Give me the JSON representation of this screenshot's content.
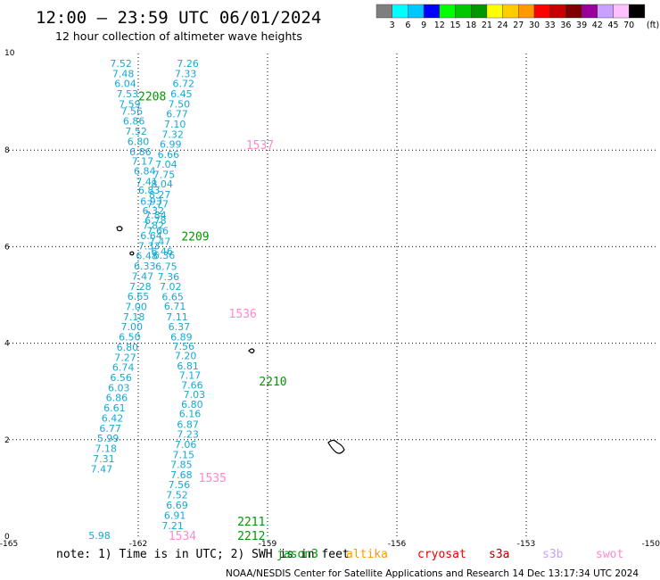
{
  "chart_data": {
    "type": "scatter",
    "title": "12:00 — 23:59 UTC 06/01/2024",
    "subtitle": "12 hour collection of altimeter wave heights",
    "xlim": [
      -165,
      -150
    ],
    "ylim": [
      0,
      10
    ],
    "x_ticks": [
      "-165",
      "-162",
      "-159",
      "-156",
      "-153",
      "-150"
    ],
    "y_ticks": [
      "0",
      "2",
      "4",
      "6",
      "8",
      "10"
    ],
    "grid": "dotted",
    "colorbar": {
      "unit": "(ft)",
      "labels": [
        "3",
        "6",
        "9",
        "12",
        "15",
        "18",
        "21",
        "24",
        "27",
        "30",
        "33",
        "36",
        "39",
        "42",
        "45",
        "70"
      ],
      "colors": [
        "#7f7f7f",
        "#00ffff",
        "#00c8ff",
        "#0000ff",
        "#00ff00",
        "#00c800",
        "#009600",
        "#ffff00",
        "#ffcc00",
        "#ff9900",
        "#ff0000",
        "#c80000",
        "#800000",
        "#9b009b",
        "#c9a0ff",
        "#ffc0ff",
        "#000000"
      ]
    },
    "passes": [
      {
        "label": "2208",
        "satellite": "jason3",
        "color": "#009900",
        "x": -162.0,
        "y": 9.1
      },
      {
        "label": "2209",
        "satellite": "jason3",
        "color": "#009900",
        "x": -161.0,
        "y": 6.2
      },
      {
        "label": "2210",
        "satellite": "jason3",
        "color": "#009900",
        "x": -159.2,
        "y": 3.2
      },
      {
        "label": "2211",
        "satellite": "jason3",
        "color": "#009900",
        "x": -159.7,
        "y": 0.3
      },
      {
        "label": "2212",
        "satellite": "jason3",
        "color": "#009900",
        "x": -159.7,
        "y": 0.0
      },
      {
        "label": "1537",
        "satellite": "swot",
        "color": "#ff88cc",
        "x": -159.5,
        "y": 8.1
      },
      {
        "label": "1536",
        "satellite": "swot",
        "color": "#ff88cc",
        "x": -159.9,
        "y": 4.6
      },
      {
        "label": "1535",
        "satellite": "swot",
        "color": "#ff88cc",
        "x": -160.6,
        "y": 1.2
      },
      {
        "label": "1534",
        "satellite": "swot",
        "color": "#ff88cc",
        "x": -161.3,
        "y": 0.0
      }
    ],
    "series": [
      {
        "name": "2208",
        "points": [
          {
            "x": -162.4,
            "y": 9.8,
            "v": "7.52"
          },
          {
            "x": -162.35,
            "y": 9.58,
            "v": "7.48"
          },
          {
            "x": -162.3,
            "y": 9.38,
            "v": "6.04"
          },
          {
            "x": -162.25,
            "y": 9.17,
            "v": "7.53"
          },
          {
            "x": -162.2,
            "y": 8.96,
            "v": "7.59"
          },
          {
            "x": -162.15,
            "y": 8.81,
            "v": "7.56"
          },
          {
            "x": -162.1,
            "y": 8.6,
            "v": "6.86"
          },
          {
            "x": -162.05,
            "y": 8.39,
            "v": "7.52"
          },
          {
            "x": -162.0,
            "y": 8.18,
            "v": "6.80"
          },
          {
            "x": -161.95,
            "y": 7.97,
            "v": "6.86"
          },
          {
            "x": -161.9,
            "y": 7.77,
            "v": "7.17"
          },
          {
            "x": -161.85,
            "y": 7.57,
            "v": "6.84"
          },
          {
            "x": -161.8,
            "y": 7.35,
            "v": "7.41"
          },
          {
            "x": -161.75,
            "y": 7.17,
            "v": "6.83"
          },
          {
            "x": -161.7,
            "y": 6.94,
            "v": "6.93"
          },
          {
            "x": -161.65,
            "y": 6.75,
            "v": "6.32"
          },
          {
            "x": -161.6,
            "y": 6.54,
            "v": "6.78"
          },
          {
            "x": -161.55,
            "y": 6.33,
            "v": "7.66"
          },
          {
            "x": -161.5,
            "y": 6.11,
            "v": "7.47"
          },
          {
            "x": -161.45,
            "y": 5.91,
            "v": "6.46"
          },
          {
            "x": -161.4,
            "y": 5.82,
            "v": "6.36"
          },
          {
            "x": -161.35,
            "y": 5.59,
            "v": "6.75"
          },
          {
            "x": -161.3,
            "y": 5.38,
            "v": "7.36"
          },
          {
            "x": -161.25,
            "y": 5.18,
            "v": "7.02"
          },
          {
            "x": -161.2,
            "y": 4.96,
            "v": "6.65"
          },
          {
            "x": -161.15,
            "y": 4.77,
            "v": "6.71"
          },
          {
            "x": -161.1,
            "y": 4.55,
            "v": "7.11"
          },
          {
            "x": -161.05,
            "y": 4.34,
            "v": "6.37"
          },
          {
            "x": -161.0,
            "y": 4.13,
            "v": "6.89"
          },
          {
            "x": -160.95,
            "y": 3.94,
            "v": "7.56"
          },
          {
            "x": -160.9,
            "y": 3.74,
            "v": "7.20"
          },
          {
            "x": -160.85,
            "y": 3.53,
            "v": "6.81"
          },
          {
            "x": -160.8,
            "y": 3.34,
            "v": "7.17"
          },
          {
            "x": -160.75,
            "y": 3.13,
            "v": "7.66"
          },
          {
            "x": -160.7,
            "y": 2.94,
            "v": "7.03"
          },
          {
            "x": -160.75,
            "y": 2.74,
            "v": "6.80"
          },
          {
            "x": -160.8,
            "y": 2.54,
            "v": "6.16"
          },
          {
            "x": -160.85,
            "y": 2.32,
            "v": "6.87"
          },
          {
            "x": -160.85,
            "y": 2.12,
            "v": "7.23"
          },
          {
            "x": -160.9,
            "y": 1.9,
            "v": "7.06"
          },
          {
            "x": -160.95,
            "y": 1.69,
            "v": "7.15"
          },
          {
            "x": -161.0,
            "y": 1.49,
            "v": "7.85"
          },
          {
            "x": -161.0,
            "y": 1.28,
            "v": "7.68"
          },
          {
            "x": -161.05,
            "y": 1.07,
            "v": "7.56"
          },
          {
            "x": -161.1,
            "y": 0.86,
            "v": "7.52"
          },
          {
            "x": -161.1,
            "y": 0.65,
            "v": "6.69"
          },
          {
            "x": -161.15,
            "y": 0.43,
            "v": "6.91"
          },
          {
            "x": -161.2,
            "y": 0.22,
            "v": "7.21"
          }
        ]
      },
      {
        "name": "1537",
        "points": [
          {
            "x": -160.85,
            "y": 9.8,
            "v": "7.26"
          },
          {
            "x": -160.9,
            "y": 9.58,
            "v": "7.33"
          },
          {
            "x": -160.95,
            "y": 9.38,
            "v": "6.72"
          },
          {
            "x": -161.0,
            "y": 9.17,
            "v": "6.45"
          },
          {
            "x": -161.05,
            "y": 8.96,
            "v": "7.50"
          },
          {
            "x": -161.1,
            "y": 8.75,
            "v": "6.77"
          },
          {
            "x": -161.15,
            "y": 8.54,
            "v": "7.10"
          },
          {
            "x": -161.2,
            "y": 8.33,
            "v": "7.32"
          },
          {
            "x": -161.25,
            "y": 8.12,
            "v": "6.99"
          },
          {
            "x": -161.3,
            "y": 7.91,
            "v": "6.66"
          },
          {
            "x": -161.35,
            "y": 7.71,
            "v": "7.04"
          },
          {
            "x": -161.4,
            "y": 7.5,
            "v": "7.75"
          },
          {
            "x": -161.45,
            "y": 7.3,
            "v": "8.04"
          },
          {
            "x": -161.5,
            "y": 7.08,
            "v": "8.27"
          },
          {
            "x": -161.55,
            "y": 6.89,
            "v": "7.77"
          },
          {
            "x": -161.6,
            "y": 6.65,
            "v": "7.84"
          },
          {
            "x": -161.65,
            "y": 6.44,
            "v": "7.82"
          },
          {
            "x": -161.7,
            "y": 6.23,
            "v": "6.64"
          },
          {
            "x": -161.75,
            "y": 6.02,
            "v": "7.33"
          },
          {
            "x": -161.8,
            "y": 5.81,
            "v": "6.48"
          },
          {
            "x": -161.85,
            "y": 5.6,
            "v": "6.33"
          },
          {
            "x": -161.9,
            "y": 5.39,
            "v": "7.47"
          },
          {
            "x": -161.95,
            "y": 5.18,
            "v": "7.28"
          },
          {
            "x": -162.0,
            "y": 4.97,
            "v": "6.65"
          },
          {
            "x": -162.05,
            "y": 4.76,
            "v": "7.00"
          },
          {
            "x": -162.1,
            "y": 4.55,
            "v": "7.18"
          },
          {
            "x": -162.15,
            "y": 4.34,
            "v": "7.00"
          },
          {
            "x": -162.2,
            "y": 4.13,
            "v": "6.50"
          },
          {
            "x": -162.25,
            "y": 3.92,
            "v": "6.80"
          },
          {
            "x": -162.3,
            "y": 3.71,
            "v": "7.27"
          },
          {
            "x": -162.35,
            "y": 3.5,
            "v": "6.74"
          },
          {
            "x": -162.4,
            "y": 3.29,
            "v": "6.56"
          },
          {
            "x": -162.45,
            "y": 3.08,
            "v": "6.03"
          },
          {
            "x": -162.5,
            "y": 2.87,
            "v": "6.86"
          },
          {
            "x": -162.55,
            "y": 2.66,
            "v": "6.61"
          },
          {
            "x": -162.6,
            "y": 2.45,
            "v": "6.42"
          },
          {
            "x": -162.65,
            "y": 2.24,
            "v": "6.77"
          },
          {
            "x": -162.7,
            "y": 2.03,
            "v": "5.99"
          },
          {
            "x": -162.75,
            "y": 1.82,
            "v": "7.18"
          },
          {
            "x": -162.8,
            "y": 1.61,
            "v": "7.31"
          },
          {
            "x": -162.85,
            "y": 1.4,
            "v": "7.47"
          },
          {
            "x": -162.9,
            "y": 0.02,
            "v": "5.98"
          }
        ]
      }
    ]
  },
  "footer": {
    "note": "note: 1) Time is in UTC; 2) SWH is in feet",
    "satellites": [
      {
        "name": "jason3",
        "color": "#009900"
      },
      {
        "name": "altika",
        "color": "#ff9900"
      },
      {
        "name": "cryosat",
        "color": "#ee0000"
      },
      {
        "name": "s3a",
        "color": "#aa0000"
      },
      {
        "name": "s3b",
        "color": "#c9a0ff"
      },
      {
        "name": "swot",
        "color": "#ff88cc"
      }
    ],
    "credit": "NOAA/NESDIS Center for Satellite Applications and Research   14 Dec 13:17:34 UTC 2024"
  }
}
